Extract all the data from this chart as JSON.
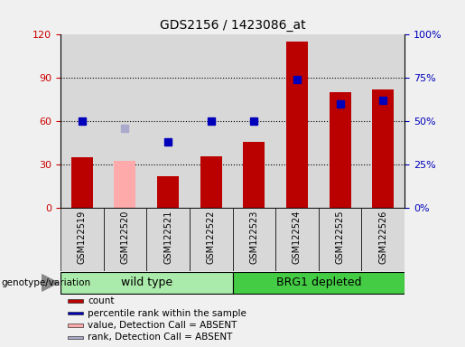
{
  "title": "GDS2156 / 1423086_at",
  "samples": [
    "GSM122519",
    "GSM122520",
    "GSM122521",
    "GSM122522",
    "GSM122523",
    "GSM122524",
    "GSM122525",
    "GSM122526"
  ],
  "count_values": [
    35,
    33,
    22,
    36,
    46,
    115,
    80,
    82
  ],
  "rank_values": [
    50,
    46,
    38,
    50,
    50,
    74,
    60,
    62
  ],
  "absent_mask": [
    false,
    true,
    false,
    false,
    false,
    false,
    false,
    false
  ],
  "count_color_normal": "#bb0000",
  "count_color_absent": "#ffaaaa",
  "rank_color_normal": "#0000bb",
  "rank_color_absent": "#aaaacc",
  "left_ylim": [
    0,
    120
  ],
  "right_ylim": [
    0,
    100
  ],
  "left_yticks": [
    0,
    30,
    60,
    90,
    120
  ],
  "right_yticks": [
    0,
    25,
    50,
    75,
    100
  ],
  "right_yticklabels": [
    "0%",
    "25%",
    "50%",
    "75%",
    "100%"
  ],
  "grid_values": [
    30,
    60,
    90
  ],
  "wild_type_label": "wild type",
  "brg1_label": "BRG1 depleted",
  "genotype_label": "genotype/variation",
  "legend_items": [
    {
      "label": "count",
      "color": "#bb0000"
    },
    {
      "label": "percentile rank within the sample",
      "color": "#0000bb"
    },
    {
      "label": "value, Detection Call = ABSENT",
      "color": "#ffaaaa"
    },
    {
      "label": "rank, Detection Call = ABSENT",
      "color": "#aaaacc"
    }
  ],
  "col_bg_color": "#d8d8d8",
  "fig_bg_color": "#f0f0f0",
  "bar_width": 0.5,
  "marker_size": 6,
  "wt_color": "#aaeaaa",
  "brg_color": "#44cc44"
}
